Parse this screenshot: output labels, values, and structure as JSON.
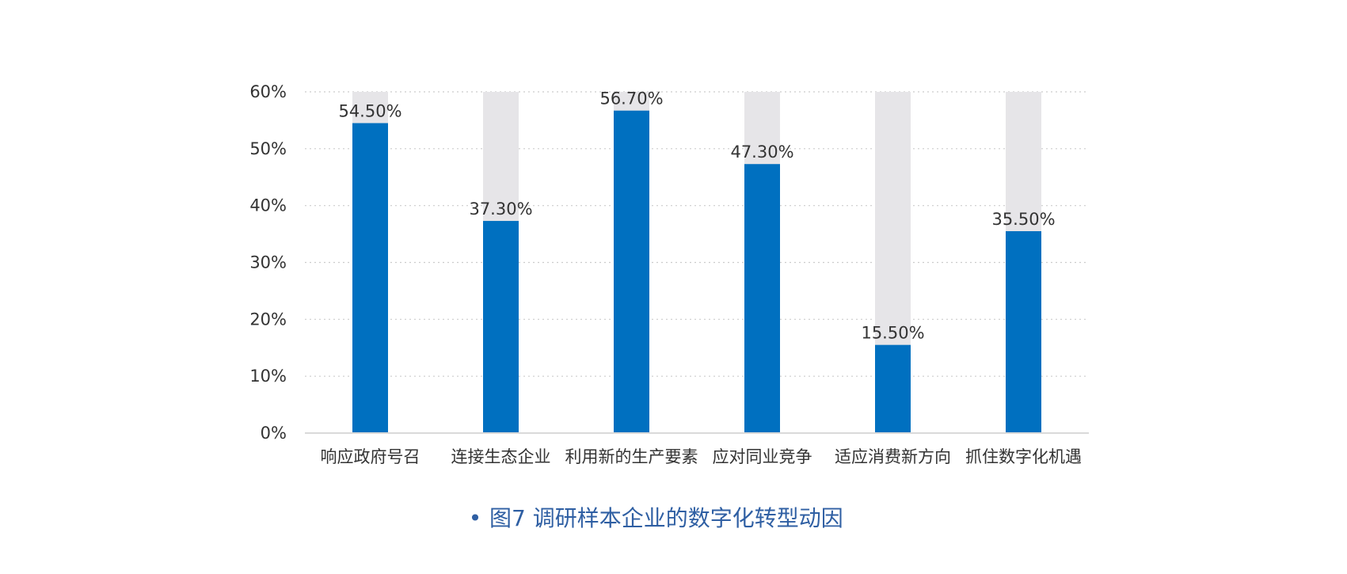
{
  "chart_data": {
    "type": "bar",
    "categories": [
      "响应政府号召",
      "连接生态企业",
      "利用新的生产要素",
      "应对同业竞争",
      "适应消费新方向",
      "抓住数字化机遇"
    ],
    "series": [
      {
        "values": [
          54.5,
          37.3,
          56.7,
          47.3,
          15.5,
          35.5
        ]
      }
    ],
    "data_labels": [
      "54.50%",
      "37.30%",
      "56.70%",
      "47.30%",
      "15.50%",
      "35.50%"
    ],
    "ylim": [
      0,
      60
    ],
    "yticks": [
      0,
      10,
      20,
      30,
      40,
      50,
      60
    ],
    "ytick_labels": [
      "0%",
      "10%",
      "20%",
      "30%",
      "40%",
      "50%",
      "60%"
    ],
    "grid": true,
    "legend": "none",
    "colors": {
      "bar": "#0070c0",
      "background_bar": "#e6e5e8",
      "grid": "#cccccc",
      "axis": "#d9d9d9",
      "caption": "#2f5fa3"
    }
  },
  "caption": {
    "bullet": "•",
    "text": "图7  调研样本企业的数字化转型动因"
  }
}
